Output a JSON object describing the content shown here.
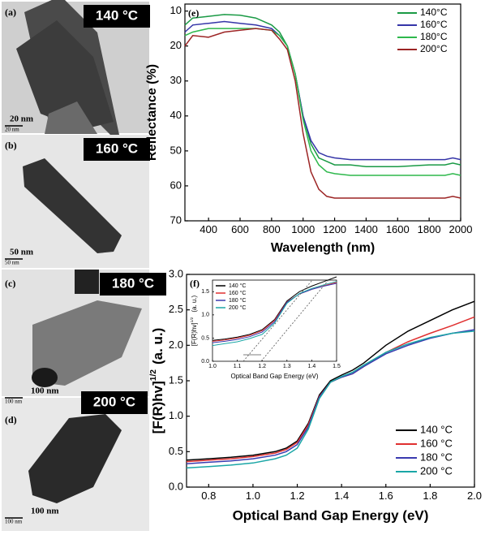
{
  "panels": [
    {
      "label": "(a)",
      "temp": "140 °C",
      "scale": "20 nm",
      "scale_small": "20 nm"
    },
    {
      "label": "(b)",
      "temp": "160 °C",
      "scale": "50 nm",
      "scale_small": "50 nm"
    },
    {
      "label": "(c)",
      "temp": "180 °C",
      "scale": "100 nm",
      "scale_small": "100 nm"
    },
    {
      "label": "(d)",
      "temp": "200 °C",
      "scale": "100 nm",
      "scale_small": "100 nm"
    }
  ],
  "chart_data": [
    {
      "type": "line",
      "label": "(e)",
      "xlabel": "Wavelength (nm)",
      "ylabel": "Reflectance (%)",
      "x": [
        250,
        300,
        400,
        500,
        600,
        700,
        800,
        850,
        900,
        950,
        1000,
        1050,
        1100,
        1150,
        1200,
        1300,
        1400,
        1600,
        1800,
        1900,
        1950,
        2000
      ],
      "xlim": [
        250,
        2000
      ],
      "xticks": [
        400,
        600,
        800,
        1000,
        1200,
        1400,
        1600,
        1800,
        2000
      ],
      "ylim": [
        8,
        70
      ],
      "yticks": [
        10,
        20,
        30,
        40,
        50,
        60,
        70
      ],
      "y_inverted": true,
      "legend": "upper right",
      "series": [
        {
          "name": "140°C",
          "color": "#1a9a45",
          "values": [
            14,
            12,
            11.5,
            11,
            11.2,
            12,
            14,
            16,
            20,
            28,
            40,
            48,
            52,
            53,
            54,
            54,
            54.5,
            54.5,
            54,
            54,
            53.5,
            54
          ]
        },
        {
          "name": "160°C",
          "color": "#3535a8",
          "values": [
            16,
            14,
            13.5,
            13,
            13.5,
            14,
            15,
            17,
            20,
            28,
            40,
            47,
            50.5,
            51.5,
            52,
            52.5,
            52.5,
            52.5,
            52.5,
            52.5,
            52,
            52.5
          ]
        },
        {
          "name": "180°C",
          "color": "#2eb84c",
          "values": [
            17,
            16,
            15,
            15,
            15,
            15,
            15.5,
            17,
            20,
            28,
            41,
            50,
            54,
            56,
            56.5,
            57,
            57,
            57,
            57,
            57,
            56.5,
            57
          ]
        },
        {
          "name": "200°C",
          "color": "#9c2424",
          "values": [
            20,
            17,
            17.5,
            16,
            15.5,
            15,
            15.5,
            18,
            21,
            30,
            45,
            56,
            61,
            63,
            63.5,
            63.5,
            63.5,
            63.5,
            63.5,
            63.5,
            63,
            63.5
          ]
        }
      ]
    },
    {
      "type": "line",
      "label": "(f)",
      "xlabel": "Optical Band Gap Energy (eV)",
      "ylabel": "[F(R)hv]",
      "ylabel_sup": "1/2",
      "ylabel_unit": "(a. u.)",
      "x": [
        0.7,
        0.8,
        0.9,
        1.0,
        1.1,
        1.15,
        1.2,
        1.25,
        1.3,
        1.35,
        1.4,
        1.45,
        1.5,
        1.6,
        1.7,
        1.8,
        1.9,
        2.0
      ],
      "xlim": [
        0.7,
        2.0
      ],
      "xticks": [
        0.8,
        {
          "value": 1,
          "label": "1.0"
        },
        1.2,
        1.4,
        1.6,
        1.8,
        {
          "value": 2,
          "label": "2.0"
        }
      ],
      "ylim": [
        0,
        3
      ],
      "yticks": [
        {
          "value": 0,
          "label": "0.0"
        },
        0.5,
        {
          "value": 1,
          "label": "1.0"
        },
        1.5,
        {
          "value": 2,
          "label": "2.0"
        },
        2.5,
        {
          "value": 3,
          "label": "3.0"
        }
      ],
      "legend": "lower right",
      "series": [
        {
          "name": "140 °C",
          "color": "#000000",
          "values": [
            0.38,
            0.4,
            0.42,
            0.45,
            0.5,
            0.55,
            0.65,
            0.9,
            1.3,
            1.5,
            1.58,
            1.65,
            1.75,
            2.0,
            2.2,
            2.35,
            2.5,
            2.62
          ]
        },
        {
          "name": "160 °C",
          "color": "#e03030",
          "values": [
            0.36,
            0.38,
            0.4,
            0.43,
            0.48,
            0.53,
            0.63,
            0.88,
            1.28,
            1.48,
            1.55,
            1.6,
            1.7,
            1.9,
            2.05,
            2.17,
            2.28,
            2.4
          ]
        },
        {
          "name": "180 °C",
          "color": "#3a3ab0",
          "values": [
            0.33,
            0.35,
            0.37,
            0.4,
            0.45,
            0.5,
            0.6,
            0.85,
            1.27,
            1.48,
            1.55,
            1.6,
            1.7,
            1.88,
            2.0,
            2.1,
            2.17,
            2.22
          ]
        },
        {
          "name": "200 °C",
          "color": "#1aa6a6",
          "values": [
            0.27,
            0.29,
            0.31,
            0.34,
            0.4,
            0.45,
            0.55,
            0.82,
            1.25,
            1.48,
            1.56,
            1.62,
            1.72,
            1.9,
            2.02,
            2.11,
            2.17,
            2.2
          ]
        }
      ]
    },
    {
      "type": "line",
      "xlabel": "Optical Band Gap Energy (eV)",
      "ylabel": "[F(R)hv]",
      "ylabel_sup": "1/2",
      "ylabel_unit": "(a. u.)",
      "x": [
        1.0,
        1.05,
        1.1,
        1.15,
        1.2,
        1.25,
        1.3,
        1.35,
        1.4,
        1.45,
        1.5
      ],
      "xlim": [
        1.0,
        1.5
      ],
      "xticks": [
        {
          "value": 1,
          "label": "1.0"
        },
        1.1,
        1.2,
        1.3,
        1.4,
        1.5
      ],
      "ylim": [
        0,
        1.75
      ],
      "yticks": [
        {
          "value": 0,
          "label": "0.0"
        },
        0.5,
        {
          "value": 1,
          "label": "1.0"
        },
        1.5
      ],
      "legend": "upper left",
      "series": [
        {
          "name": "140 °C",
          "color": "#000000",
          "values": [
            0.45,
            0.48,
            0.52,
            0.58,
            0.68,
            0.9,
            1.3,
            1.5,
            1.62,
            1.72,
            1.82
          ]
        },
        {
          "name": "160 °C",
          "color": "#e03030",
          "values": [
            0.43,
            0.46,
            0.5,
            0.56,
            0.66,
            0.88,
            1.28,
            1.45,
            1.55,
            1.63,
            1.7
          ]
        },
        {
          "name": "180 °C",
          "color": "#3a3ab0",
          "values": [
            0.4,
            0.43,
            0.47,
            0.53,
            0.63,
            0.85,
            1.27,
            1.45,
            1.55,
            1.62,
            1.68
          ]
        },
        {
          "name": "200 °C",
          "color": "#1aa6a6",
          "values": [
            0.34,
            0.38,
            0.42,
            0.49,
            0.58,
            0.82,
            1.25,
            1.46,
            1.57,
            1.65,
            1.72
          ]
        }
      ]
    }
  ]
}
